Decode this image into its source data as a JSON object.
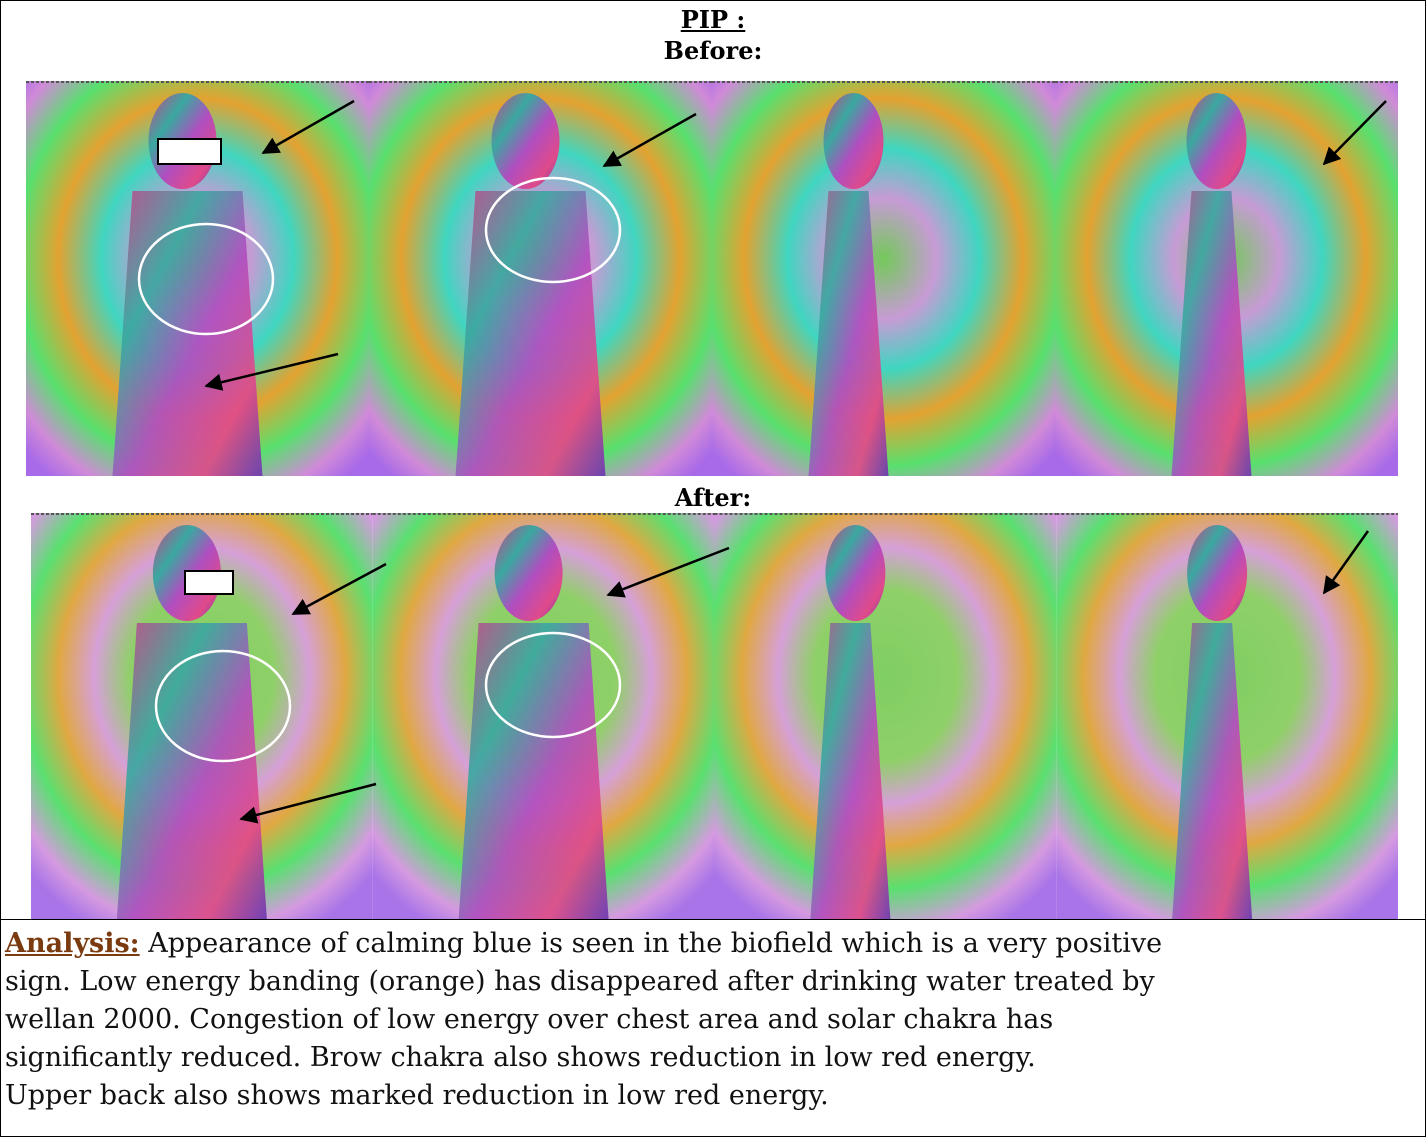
{
  "header": {
    "title": "PIP :",
    "before_label": "Before:",
    "after_label": "After:"
  },
  "analysis": {
    "label": "Analysis:",
    "lines": [
      " Appearance of calming blue is seen in the biofield which is a very positive",
      "sign. Low energy banding (orange) has disappeared after drinking water treated by",
      "wellan 2000. Congestion of low energy over chest area and solar chakra has",
      "significantly reduced.  Brow chakra also shows reduction in low red energy.",
      "Upper back also shows marked reduction in low red energy."
    ]
  }
}
